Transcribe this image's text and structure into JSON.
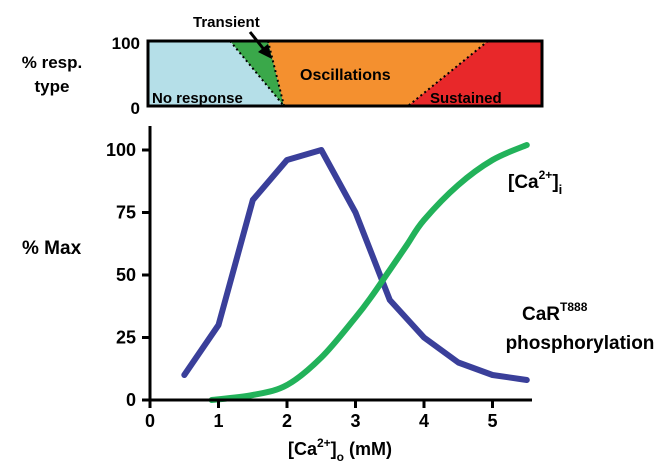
{
  "chart_data": [
    {
      "type": "area",
      "ylabel_line1": "% resp.",
      "ylabel_line2": "type",
      "yticks": [
        "100",
        "0"
      ],
      "ylim": [
        0,
        100
      ],
      "xlim": [
        0,
        5.5
      ],
      "regions": [
        {
          "name": "No response",
          "color": "#b5dfe8"
        },
        {
          "name": "Transient",
          "color": "#3aa84a"
        },
        {
          "name": "Oscillations",
          "color": "#f4902f"
        },
        {
          "name": "Sustained",
          "color": "#e8282a"
        }
      ]
    },
    {
      "type": "line",
      "ylabel": "% Max",
      "xlim": [
        0,
        5.5
      ],
      "ylim": [
        0,
        105
      ],
      "xticks": [
        0,
        1,
        2,
        3,
        4,
        5
      ],
      "yticks": [
        0,
        25,
        50,
        75,
        100
      ],
      "xlabel_main": "[Ca",
      "xlabel_sup": "2+",
      "xlabel_close": "]",
      "xlabel_sub": "o",
      "xlabel_unit": " (mM)",
      "series": [
        {
          "label_main": "CaR",
          "label_sup": "T888",
          "label_line2": "phosphorylation",
          "color": "#3a3f9a",
          "x": [
            0.5,
            1.0,
            1.5,
            2.0,
            2.5,
            3.0,
            3.5,
            4.0,
            4.5,
            5.0,
            5.5
          ],
          "y": [
            10,
            30,
            80,
            96,
            100,
            75,
            40,
            25,
            15,
            10,
            8
          ]
        },
        {
          "label_main": "[Ca",
          "label_sup": "2+",
          "label_close": "]",
          "label_sub": "i",
          "color": "#22b25a",
          "x": [
            0.9,
            1.5,
            2.0,
            2.5,
            3.0,
            3.25,
            3.5,
            3.75,
            4.0,
            4.5,
            5.0,
            5.5
          ],
          "y": [
            0,
            2,
            6,
            17,
            33,
            42,
            52,
            62,
            72,
            86,
            96,
            102
          ]
        }
      ]
    }
  ],
  "annotation_arrow_label": "Transient"
}
